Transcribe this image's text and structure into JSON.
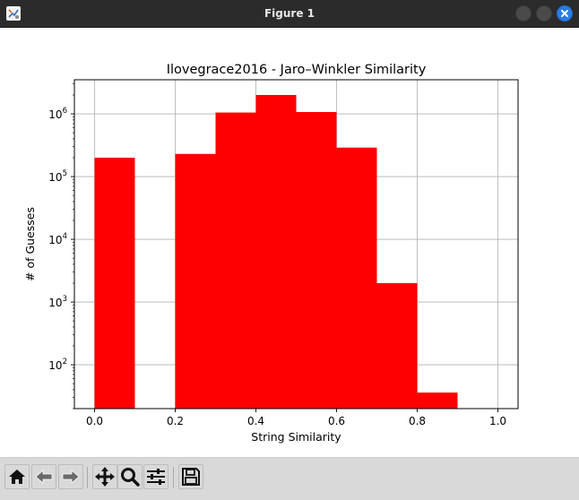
{
  "window": {
    "title": "Figure 1",
    "title_bar_color": "#2b2b2b",
    "close_button_color": "#2a7de1"
  },
  "toolbar": {
    "buttons": [
      {
        "name": "home",
        "icon": "home-icon"
      },
      {
        "name": "back",
        "icon": "left-arrow-icon"
      },
      {
        "name": "forward",
        "icon": "right-arrow-icon"
      },
      {
        "name": "pan",
        "icon": "move-icon"
      },
      {
        "name": "zoom",
        "icon": "magnifier-icon"
      },
      {
        "name": "subplots",
        "icon": "sliders-icon"
      },
      {
        "name": "save",
        "icon": "floppy-disk-icon"
      }
    ]
  },
  "chart_data": {
    "type": "bar",
    "title": "Ilovegrace2016 - Jaro–Winkler Similarity",
    "xlabel": "String Similarity",
    "ylabel": "# of Guesses",
    "yscale": "log",
    "xlim": [
      -0.05,
      1.05
    ],
    "ylim": [
      20,
      3500000
    ],
    "grid": true,
    "bar_color": "#ff0000",
    "bins": [
      {
        "x0": 0.0,
        "x1": 0.1,
        "value": 200000
      },
      {
        "x0": 0.1,
        "x1": 0.2,
        "value": 0
      },
      {
        "x0": 0.2,
        "x1": 0.3,
        "value": 230000
      },
      {
        "x0": 0.3,
        "x1": 0.4,
        "value": 1050000
      },
      {
        "x0": 0.4,
        "x1": 0.5,
        "value": 2000000
      },
      {
        "x0": 0.5,
        "x1": 0.6,
        "value": 1070000
      },
      {
        "x0": 0.6,
        "x1": 0.7,
        "value": 290000
      },
      {
        "x0": 0.7,
        "x1": 0.8,
        "value": 2000
      },
      {
        "x0": 0.8,
        "x1": 0.9,
        "value": 36
      },
      {
        "x0": 0.9,
        "x1": 1.0,
        "value": 0
      }
    ],
    "x_ticks": [
      {
        "value": 0.0,
        "label": "0.0"
      },
      {
        "value": 0.2,
        "label": "0.2"
      },
      {
        "value": 0.4,
        "label": "0.4"
      },
      {
        "value": 0.6,
        "label": "0.6"
      },
      {
        "value": 0.8,
        "label": "0.8"
      },
      {
        "value": 1.0,
        "label": "1.0"
      }
    ],
    "y_ticks": [
      {
        "value": 100,
        "base": "10",
        "exp": "2"
      },
      {
        "value": 1000,
        "base": "10",
        "exp": "3"
      },
      {
        "value": 10000,
        "base": "10",
        "exp": "4"
      },
      {
        "value": 100000,
        "base": "10",
        "exp": "5"
      },
      {
        "value": 1000000,
        "base": "10",
        "exp": "6"
      }
    ]
  }
}
